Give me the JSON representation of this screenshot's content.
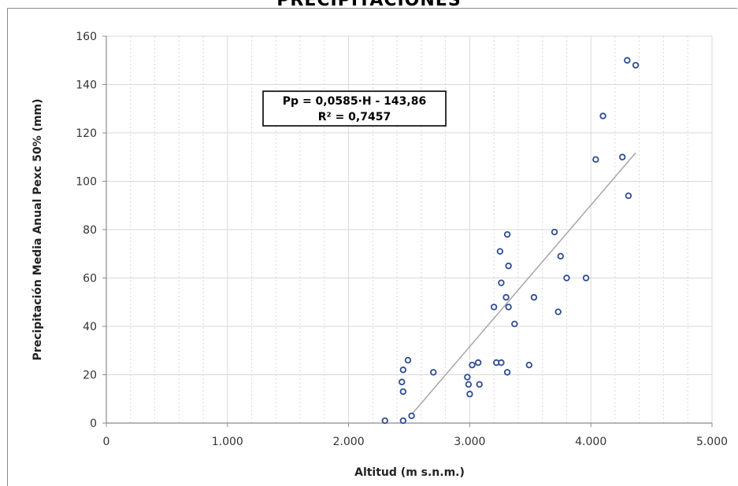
{
  "chart_data": {
    "type": "scatter",
    "title": "PRECIPITACIONES",
    "xlabel": "Altitud (m s.n.m.)",
    "ylabel": "Precipitación Media Anual Pexc 50% (mm)",
    "xlim": [
      0,
      5000
    ],
    "ylim": [
      0,
      160
    ],
    "x_ticks": [
      0,
      1000,
      2000,
      3000,
      4000,
      5000
    ],
    "x_tick_labels": [
      "0",
      "1.000",
      "2.000",
      "3.000",
      "4.000",
      "5.000"
    ],
    "y_ticks": [
      0,
      20,
      40,
      60,
      80,
      100,
      120,
      140,
      160
    ],
    "y_tick_labels": [
      "0",
      "20",
      "40",
      "60",
      "80",
      "100",
      "120",
      "140",
      "160"
    ],
    "grid": true,
    "colors": {
      "marker": "#2e4d8f",
      "trendline": "#a6a6a6",
      "grid": "#d9d9d9",
      "axis": "#8c8c8c"
    },
    "points": [
      {
        "x": 2300,
        "y": 1
      },
      {
        "x": 2450,
        "y": 1
      },
      {
        "x": 2520,
        "y": 3
      },
      {
        "x": 2450,
        "y": 13
      },
      {
        "x": 2440,
        "y": 17
      },
      {
        "x": 2450,
        "y": 22
      },
      {
        "x": 2490,
        "y": 26
      },
      {
        "x": 2700,
        "y": 21
      },
      {
        "x": 2980,
        "y": 19
      },
      {
        "x": 2990,
        "y": 16
      },
      {
        "x": 3000,
        "y": 12
      },
      {
        "x": 3020,
        "y": 24
      },
      {
        "x": 3070,
        "y": 25
      },
      {
        "x": 3080,
        "y": 16
      },
      {
        "x": 3200,
        "y": 48
      },
      {
        "x": 3220,
        "y": 25
      },
      {
        "x": 3260,
        "y": 25
      },
      {
        "x": 3250,
        "y": 71
      },
      {
        "x": 3260,
        "y": 58
      },
      {
        "x": 3300,
        "y": 52
      },
      {
        "x": 3310,
        "y": 78
      },
      {
        "x": 3320,
        "y": 65
      },
      {
        "x": 3320,
        "y": 48
      },
      {
        "x": 3310,
        "y": 21
      },
      {
        "x": 3370,
        "y": 41
      },
      {
        "x": 3490,
        "y": 24
      },
      {
        "x": 3530,
        "y": 52
      },
      {
        "x": 3700,
        "y": 79
      },
      {
        "x": 3730,
        "y": 46
      },
      {
        "x": 3750,
        "y": 69
      },
      {
        "x": 3800,
        "y": 60
      },
      {
        "x": 3960,
        "y": 60
      },
      {
        "x": 4040,
        "y": 109
      },
      {
        "x": 4100,
        "y": 127
      },
      {
        "x": 4260,
        "y": 110
      },
      {
        "x": 4300,
        "y": 150
      },
      {
        "x": 4310,
        "y": 94
      },
      {
        "x": 4370,
        "y": 148
      }
    ],
    "trendline": {
      "slope": 0.0585,
      "intercept": -143.86,
      "x_start": 2500,
      "x_end": 4370
    },
    "annotation": {
      "equation": "Pp = 0,0585·H - 143,86",
      "r_squared": "R² = 0,7457"
    }
  }
}
